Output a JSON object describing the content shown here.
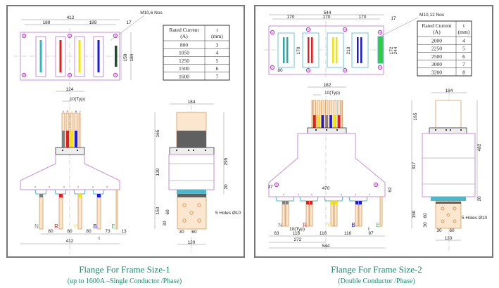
{
  "panels": [
    {
      "caption": "Flange For Frame Size-1",
      "subcaption": "(up to 1600A –Single  Conductor /Phase)",
      "bolt_note": "M10,6 Nos",
      "top_dims": {
        "overall": "412",
        "pitch": "189",
        "edge": "17",
        "inner_h": "150",
        "outer_h": "184"
      },
      "table": {
        "headers": [
          "Rated Current\n(A)",
          "t\n(mm)"
        ],
        "header_lines": [
          [
            "Rated Current",
            "(A)"
          ],
          [
            "t",
            "(mm)"
          ]
        ],
        "rows": [
          [
            "800",
            "3"
          ],
          [
            "1050",
            "4"
          ],
          [
            "1250",
            "5"
          ],
          [
            "1500",
            "6"
          ],
          [
            "1600",
            "7"
          ]
        ]
      },
      "front": {
        "width_top": "124",
        "typ": "10(Typ)",
        "phase_labels": [
          "N",
          "R",
          "Y",
          "B",
          "E"
        ],
        "bottom_dims": [
          "80",
          "80",
          "80",
          "73",
          "13"
        ],
        "t_label": "t",
        "overall": "412"
      },
      "side": {
        "width": "184",
        "h1": "165",
        "h2": "130",
        "h3": "20",
        "total": "295",
        "h4": "150",
        "holes": "5 Holes Ø10",
        "d30": "30",
        "d60": "60",
        "d120": "120"
      }
    },
    {
      "caption": "Flange For Frame Size-2",
      "subcaption": "(Double Conductor /Phase)",
      "bolt_note": "M10,12 Nos",
      "top_dims": {
        "overall": "544",
        "pitch": "170",
        "edge": "17",
        "slot_h": "170",
        "mid_h": "210",
        "inner_h": "172",
        "outer_h": "244",
        "slot_w": "80"
      },
      "table": {
        "header_lines": [
          [
            "Rated Current",
            "(A)"
          ],
          [
            "t",
            "(mm)"
          ]
        ],
        "rows": [
          [
            "2000",
            "4"
          ],
          [
            "2250",
            "5"
          ],
          [
            "2500",
            "6"
          ],
          [
            "3000",
            "7"
          ],
          [
            "3200",
            "8"
          ]
        ]
      },
      "front": {
        "width_top": "182",
        "typ": "10(Typ)",
        "phase_labels": [
          "N",
          "R",
          "Y",
          "B",
          "E"
        ],
        "edge": "37",
        "inner": "470",
        "lip": "62",
        "bottom_dims": [
          "83",
          "116",
          "116",
          "116",
          "97"
        ],
        "half": "272",
        "t_label": "t",
        "typ2": "10(Typ)",
        "overall": "544"
      },
      "side": {
        "width": "184",
        "h1": "165",
        "h2": "317",
        "h3": "20",
        "total": "482",
        "h4": "150",
        "holes": "5 Holes Ø10",
        "d30": "30",
        "d60": "60",
        "d120": "120"
      }
    }
  ],
  "colors": {
    "N": "#808080",
    "R": "#e41e1e",
    "Y": "#f2e600",
    "B": "#1a1ae0",
    "E": "#2ecc40",
    "E_top": "#1f4f2a",
    "N_top": "#2ab8c0",
    "plate": "#c58fd6",
    "bolt": "#c040d0",
    "caption": "#1a8a6a",
    "copper": "#fbe7d0"
  }
}
